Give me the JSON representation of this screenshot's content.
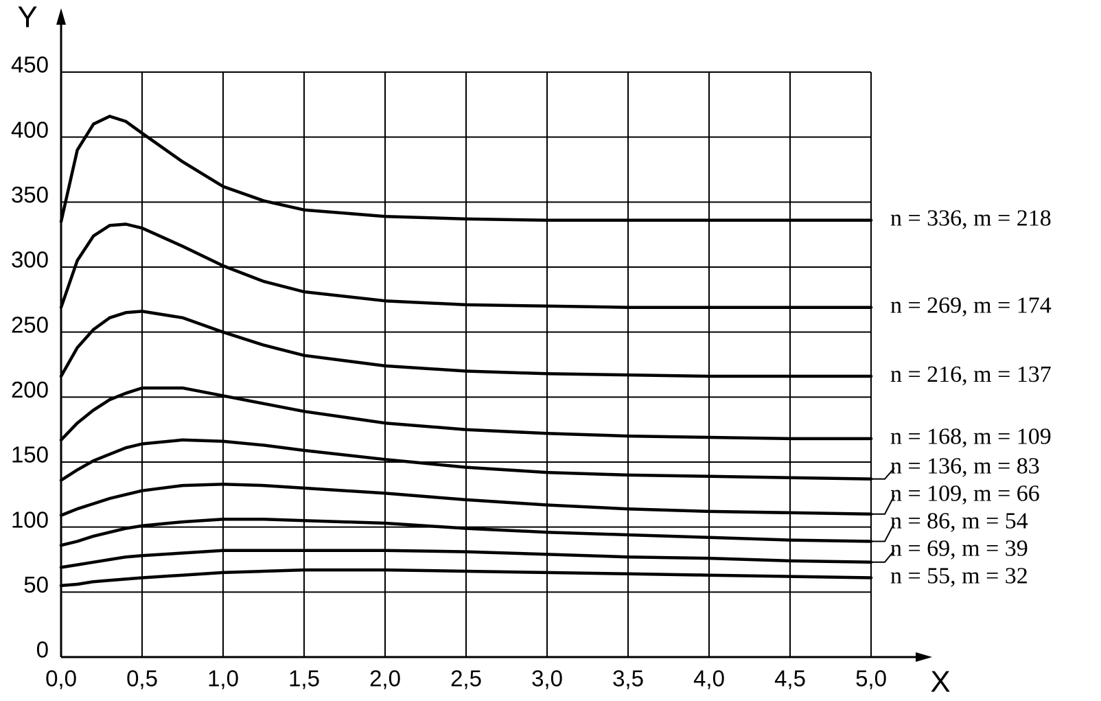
{
  "chart_data": {
    "type": "line",
    "x_label": "X",
    "y_label": "Y",
    "x": [
      0,
      0.1,
      0.2,
      0.3,
      0.4,
      0.5,
      0.75,
      1,
      1.25,
      1.5,
      2,
      2.5,
      3,
      3.5,
      4,
      4.5,
      5
    ],
    "series": [
      {
        "name": "n = 336, m = 218",
        "color": "#000000",
        "values": [
          335,
          390,
          410,
          416,
          412,
          403,
          381,
          362,
          351,
          344,
          339,
          337,
          336,
          336,
          336,
          336,
          336
        ]
      },
      {
        "name": "n = 269, m = 174",
        "color": "#000000",
        "values": [
          269,
          305,
          324,
          332,
          333,
          330,
          316,
          301,
          289,
          281,
          274,
          271,
          270,
          269,
          269,
          269,
          269
        ]
      },
      {
        "name": "n = 216, m = 137",
        "color": "#000000",
        "values": [
          216,
          238,
          252,
          261,
          265,
          266,
          261,
          250,
          240,
          232,
          224,
          220,
          218,
          217,
          216,
          216,
          216
        ]
      },
      {
        "name": "n = 168, m = 109",
        "color": "#000000",
        "values": [
          167,
          180,
          190,
          198,
          203,
          207,
          207,
          201,
          195,
          189,
          180,
          175,
          172,
          170,
          169,
          168,
          168
        ]
      },
      {
        "name": "n = 136, m = 83",
        "color": "#000000",
        "values": [
          136,
          144,
          151,
          156,
          161,
          164,
          167,
          166,
          163,
          159,
          152,
          146,
          142,
          140,
          139,
          138,
          137
        ]
      },
      {
        "name": "n = 109, m = 66",
        "color": "#000000",
        "values": [
          109,
          114,
          118,
          122,
          125,
          128,
          132,
          133,
          132,
          130,
          126,
          121,
          117,
          114,
          112,
          111,
          110
        ]
      },
      {
        "name": "n = 86, m = 54",
        "color": "#000000",
        "values": [
          86,
          89,
          93,
          96,
          99,
          101,
          104,
          106,
          106,
          105,
          103,
          99,
          96,
          94,
          92,
          90,
          89
        ]
      },
      {
        "name": "n = 69, m = 39",
        "color": "#000000",
        "values": [
          69,
          71,
          73,
          75,
          77,
          78,
          80,
          82,
          82,
          82,
          82,
          81,
          79,
          77,
          76,
          74,
          73
        ]
      },
      {
        "name": "n = 55, m = 32",
        "color": "#000000",
        "values": [
          55,
          56,
          58,
          59,
          60,
          61,
          63,
          65,
          66,
          67,
          67,
          66,
          65,
          64,
          63,
          62,
          61
        ]
      }
    ],
    "xlim": [
      0,
      5
    ],
    "ylim": [
      0,
      450
    ],
    "xticks": [
      {
        "value": 0,
        "label": "0,0"
      },
      {
        "value": 0.5,
        "label": "0,5"
      },
      {
        "value": 1,
        "label": "1,0"
      },
      {
        "value": 1.5,
        "label": "1,5"
      },
      {
        "value": 2,
        "label": "2,0"
      },
      {
        "value": 2.5,
        "label": "2,5"
      },
      {
        "value": 3,
        "label": "3,0"
      },
      {
        "value": 3.5,
        "label": "3,5"
      },
      {
        "value": 4,
        "label": "4,0"
      },
      {
        "value": 4.5,
        "label": "4,5"
      },
      {
        "value": 5,
        "label": "5,0"
      }
    ],
    "yticks": [
      0,
      50,
      100,
      150,
      200,
      250,
      300,
      350,
      400,
      450
    ],
    "grid": true
  }
}
